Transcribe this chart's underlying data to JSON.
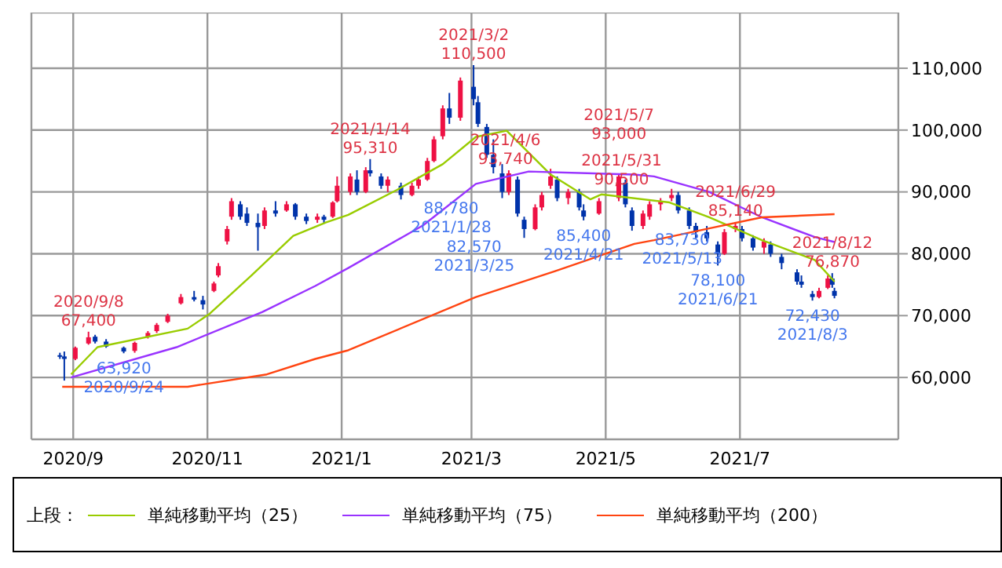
{
  "chart_data": {
    "type": "candlestick",
    "x": [
      "2020-08-26",
      "2020-08-28",
      "2020-09-02",
      "2020-09-08",
      "2020-09-11",
      "2020-09-16",
      "2020-09-24",
      "2020-09-29",
      "2020-10-05",
      "2020-10-09",
      "2020-10-14",
      "2020-10-20",
      "2020-10-26",
      "2020-10-30",
      "2020-11-04",
      "2020-11-06",
      "2020-11-10",
      "2020-11-12",
      "2020-11-16",
      "2020-11-19",
      "2020-11-24",
      "2020-11-27",
      "2020-12-02",
      "2020-12-07",
      "2020-12-11",
      "2020-12-16",
      "2020-12-21",
      "2020-12-24",
      "2020-12-28",
      "2020-12-30",
      "2021-01-05",
      "2021-01-08",
      "2021-01-12",
      "2021-01-14",
      "2021-01-19",
      "2021-01-22",
      "2021-01-28",
      "2021-02-02",
      "2021-02-05",
      "2021-02-09",
      "2021-02-12",
      "2021-02-16",
      "2021-02-19",
      "2021-02-24",
      "2021-03-02",
      "2021-03-04",
      "2021-03-08",
      "2021-03-11",
      "2021-03-15",
      "2021-03-18",
      "2021-03-22",
      "2021-03-25",
      "2021-03-30",
      "2021-04-02",
      "2021-04-06",
      "2021-04-09",
      "2021-04-14",
      "2021-04-19",
      "2021-04-21",
      "2021-04-28",
      "2021-05-07",
      "2021-05-10",
      "2021-05-13",
      "2021-05-18",
      "2021-05-21",
      "2021-05-26",
      "2021-05-31",
      "2021-06-03",
      "2021-06-08",
      "2021-06-11",
      "2021-06-16",
      "2021-06-21",
      "2021-06-24",
      "2021-06-29",
      "2021-07-02",
      "2021-07-07",
      "2021-07-12",
      "2021-07-15",
      "2021-07-20",
      "2021-07-27",
      "2021-07-29",
      "2021-08-03",
      "2021-08-06",
      "2021-08-10",
      "2021-08-12",
      "2021-08-13"
    ],
    "ohlc": [
      [
        63600,
        64000,
        63000,
        63400
      ],
      [
        63400,
        64200,
        59500,
        63000
      ],
      [
        63000,
        65000,
        62800,
        64800
      ],
      [
        65500,
        67400,
        65300,
        66500
      ],
      [
        66600,
        66900,
        65500,
        65800
      ],
      [
        65800,
        66200,
        64800,
        65000
      ],
      [
        64800,
        65000,
        63920,
        64200
      ],
      [
        64300,
        65800,
        64000,
        65600
      ],
      [
        66500,
        67500,
        66300,
        67200
      ],
      [
        67500,
        68800,
        67200,
        68500
      ],
      [
        69000,
        70300,
        68800,
        70000
      ],
      [
        72000,
        73500,
        71800,
        73000
      ],
      [
        73000,
        74000,
        72300,
        72600
      ],
      [
        72500,
        73200,
        71000,
        71800
      ],
      [
        74000,
        75500,
        73800,
        75200
      ],
      [
        76500,
        78500,
        76200,
        78000
      ],
      [
        82000,
        84500,
        81500,
        84000
      ],
      [
        86000,
        89000,
        85500,
        88500
      ],
      [
        88000,
        88500,
        85500,
        86000
      ],
      [
        86500,
        87500,
        84500,
        85000
      ],
      [
        85000,
        86500,
        80500,
        84300
      ],
      [
        84500,
        87500,
        84000,
        87000
      ],
      [
        87000,
        88500,
        86000,
        86500
      ],
      [
        87000,
        88500,
        86800,
        88000
      ],
      [
        88000,
        88200,
        85500,
        86000
      ],
      [
        86000,
        86500,
        84800,
        85300
      ],
      [
        85500,
        86500,
        85000,
        86000
      ],
      [
        86000,
        86300,
        85000,
        85500
      ],
      [
        86000,
        88500,
        85800,
        88300
      ],
      [
        88500,
        92500,
        88300,
        91000
      ],
      [
        90000,
        93000,
        89500,
        92500
      ],
      [
        92000,
        93500,
        89500,
        90000
      ],
      [
        90000,
        94000,
        89800,
        93500
      ],
      [
        93500,
        95310,
        92500,
        93000
      ],
      [
        92500,
        93000,
        90500,
        91000
      ],
      [
        91000,
        92500,
        90000,
        92000
      ],
      [
        91000,
        91500,
        88780,
        89500
      ],
      [
        89500,
        91500,
        89300,
        91000
      ],
      [
        91000,
        92500,
        90500,
        92000
      ],
      [
        92000,
        95500,
        91800,
        95000
      ],
      [
        95000,
        99000,
        94800,
        98500
      ],
      [
        99000,
        104000,
        98500,
        103500
      ],
      [
        103500,
        106000,
        101000,
        102000
      ],
      [
        102000,
        108500,
        101500,
        108000
      ],
      [
        107000,
        110500,
        104000,
        105000
      ],
      [
        104500,
        105500,
        100500,
        101000
      ],
      [
        100500,
        101000,
        95500,
        96000
      ],
      [
        96000,
        98500,
        93000,
        94000
      ],
      [
        93000,
        94500,
        89000,
        90000
      ],
      [
        90000,
        93500,
        89500,
        93000
      ],
      [
        92000,
        92500,
        86000,
        86500
      ],
      [
        85500,
        86000,
        82570,
        84000
      ],
      [
        84000,
        88000,
        83800,
        87500
      ],
      [
        87500,
        90000,
        87000,
        89500
      ],
      [
        91000,
        93740,
        90500,
        92500
      ],
      [
        92000,
        92500,
        88500,
        89000
      ],
      [
        89000,
        90500,
        88000,
        90000
      ],
      [
        90000,
        90500,
        87000,
        87500
      ],
      [
        87000,
        88000,
        85400,
        86000
      ],
      [
        86500,
        89000,
        86300,
        88500
      ],
      [
        89000,
        93000,
        88500,
        92500
      ],
      [
        91500,
        92000,
        87500,
        88000
      ],
      [
        87000,
        87500,
        83730,
        84500
      ],
      [
        84500,
        87000,
        84000,
        86500
      ],
      [
        86000,
        88500,
        85500,
        88000
      ],
      [
        88000,
        89000,
        87000,
        88500
      ],
      [
        89000,
        90500,
        88500,
        89500
      ],
      [
        89500,
        90000,
        86500,
        87000
      ],
      [
        87000,
        87500,
        84000,
        84500
      ],
      [
        84500,
        85000,
        82500,
        83500
      ],
      [
        83500,
        84500,
        82000,
        82500
      ],
      [
        81500,
        82000,
        78100,
        80000
      ],
      [
        80000,
        84000,
        79800,
        83500
      ],
      [
        84000,
        85140,
        83500,
        84500
      ],
      [
        84000,
        84500,
        82000,
        82500
      ],
      [
        82500,
        83000,
        80500,
        81000
      ],
      [
        81000,
        82500,
        80000,
        82000
      ],
      [
        81500,
        82000,
        79500,
        80000
      ],
      [
        79500,
        80000,
        77500,
        78500
      ],
      [
        77000,
        77500,
        75000,
        75500
      ],
      [
        75500,
        76500,
        74500,
        75000
      ],
      [
        73500,
        74000,
        72430,
        73000
      ],
      [
        73000,
        74500,
        72800,
        74000
      ],
      [
        74500,
        76500,
        74300,
        76000
      ],
      [
        76000,
        76870,
        74500,
        75000
      ],
      [
        74000,
        74500,
        72800,
        73200
      ]
    ],
    "colors": [
      "#0033aa",
      "#0033aa",
      "#ee1144",
      "#ee1144",
      "#0033aa",
      "#0033aa",
      "#0033aa",
      "#ee1144",
      "#ee1144",
      "#ee1144",
      "#ee1144",
      "#ee1144",
      "#0033aa",
      "#0033aa",
      "#ee1144",
      "#ee1144",
      "#ee1144",
      "#ee1144",
      "#0033aa",
      "#0033aa",
      "#0033aa",
      "#ee1144",
      "#0033aa",
      "#ee1144",
      "#0033aa",
      "#0033aa",
      "#ee1144",
      "#0033aa",
      "#ee1144",
      "#ee1144",
      "#ee1144",
      "#0033aa",
      "#ee1144",
      "#0033aa",
      "#0033aa",
      "#ee1144",
      "#0033aa",
      "#ee1144",
      "#ee1144",
      "#ee1144",
      "#ee1144",
      "#ee1144",
      "#0033aa",
      "#ee1144",
      "#0033aa",
      "#0033aa",
      "#0033aa",
      "#0033aa",
      "#0033aa",
      "#ee1144",
      "#0033aa",
      "#0033aa",
      "#ee1144",
      "#ee1144",
      "#ee1144",
      "#0033aa",
      "#ee1144",
      "#0033aa",
      "#0033aa",
      "#ee1144",
      "#ee1144",
      "#0033aa",
      "#0033aa",
      "#ee1144",
      "#ee1144",
      "#ee1144",
      "#ee1144",
      "#0033aa",
      "#0033aa",
      "#0033aa",
      "#0033aa",
      "#0033aa",
      "#ee1144",
      "#ee1144",
      "#0033aa",
      "#0033aa",
      "#ee1144",
      "#0033aa",
      "#0033aa",
      "#0033aa",
      "#0033aa",
      "#0033aa",
      "#ee1144",
      "#ee1144",
      "#0033aa",
      "#0033aa"
    ],
    "series": [
      {
        "type": "line",
        "name": "単純移動平均（25）",
        "color": "#99cc00",
        "x": [
          "2020-08-31",
          "2020-09-12",
          "2020-10-23",
          "2020-11-02",
          "2020-11-21",
          "2020-12-10",
          "2020-12-25",
          "2021-01-04",
          "2021-01-26",
          "2021-02-16",
          "2021-03-03",
          "2021-03-17",
          "2021-04-06",
          "2021-04-24",
          "2021-04-29",
          "2021-05-30",
          "2021-06-17",
          "2021-07-11",
          "2021-08-04",
          "2021-08-13"
        ],
        "values": [
          60500,
          64900,
          67900,
          70300,
          76500,
          82900,
          85100,
          86300,
          90300,
          94500,
          98900,
          99900,
          92800,
          88800,
          89600,
          88300,
          85900,
          82200,
          79000,
          75500
        ]
      },
      {
        "type": "line",
        "name": "単純移動平均（75）",
        "color": "#9933ff",
        "x": [
          "2020-08-31",
          "2020-10-18",
          "2020-11-26",
          "2020-12-20",
          "2021-01-04",
          "2021-02-07",
          "2021-03-03",
          "2021-03-27",
          "2021-05-14",
          "2021-05-23",
          "2021-06-17",
          "2021-07-11",
          "2021-08-04",
          "2021-08-13"
        ],
        "values": [
          60000,
          64900,
          70600,
          74800,
          77700,
          84600,
          91300,
          93300,
          92800,
          92500,
          90000,
          85900,
          82700,
          81900
        ]
      },
      {
        "type": "line",
        "name": "単純移動平均（200）",
        "color": "#ff4411",
        "x": [
          "2020-08-27",
          "2020-10-23",
          "2020-11-28",
          "2020-12-20",
          "2021-01-04",
          "2021-03-03",
          "2021-04-08",
          "2021-05-14",
          "2021-05-23",
          "2021-06-17",
          "2021-07-11",
          "2021-08-13"
        ],
        "values": [
          58500,
          58500,
          60500,
          63000,
          64400,
          73000,
          77200,
          81600,
          82200,
          84100,
          85900,
          86400
        ]
      }
    ],
    "xlim": [
      "2020-08-13",
      "2021-09-11"
    ],
    "xticks": [
      {
        "value": "2020-09-01",
        "label": "2020/9"
      },
      {
        "value": "2020-11-01",
        "label": "2020/11"
      },
      {
        "value": "2021-01-01",
        "label": "2021/1"
      },
      {
        "value": "2021-03-01",
        "label": "2021/3"
      },
      {
        "value": "2021-05-01",
        "label": "2021/5"
      },
      {
        "value": "2021-07-01",
        "label": "2021/7"
      }
    ],
    "ylim": [
      50000,
      119000
    ],
    "yticks": [
      {
        "value": 60000,
        "label": "60,000"
      },
      {
        "value": 70000,
        "label": "70,000"
      },
      {
        "value": 80000,
        "label": "80,000"
      },
      {
        "value": 90000,
        "label": "90,000"
      },
      {
        "value": 100000,
        "label": "100,000"
      },
      {
        "value": 110000,
        "label": "110,000"
      }
    ],
    "grid": true,
    "legend": "bottom",
    "legend_title": "上段：",
    "annotations": [
      {
        "text": "2020/9/8\n67,400",
        "x": "2020-09-08",
        "y": 67400
      },
      {
        "text": "63,920\n2020/9/24",
        "x": "2020-09-24",
        "y": 63920
      },
      {
        "text": "2021/1/14\n95,310",
        "x": "2021-01-14",
        "y": 95310
      },
      {
        "text": "88,780\n2021/1/28",
        "x": "2021-01-28",
        "y": 88780
      },
      {
        "text": "2021/3/2\n110,500",
        "x": "2021-03-02",
        "y": 110500
      },
      {
        "text": "82,570\n2021/3/25",
        "x": "2021-03-25",
        "y": 82570
      },
      {
        "text": "2021/4/6\n93,740",
        "x": "2021-04-06",
        "y": 93740
      },
      {
        "text": "85,400\n2021/4/21",
        "x": "2021-04-21",
        "y": 85400
      },
      {
        "text": "2021/5/7\n93,000",
        "x": "2021-05-07",
        "y": 93000
      },
      {
        "text": "83,730\n2021/5/13",
        "x": "2021-05-13",
        "y": 83730
      },
      {
        "text": "2021/5/31\n90,500",
        "x": "2021-05-31",
        "y": 90500
      },
      {
        "text": "78,100\n2021/6/21",
        "x": "2021-06-21",
        "y": 78100
      },
      {
        "text": "2021/6/29\n85,140",
        "x": "2021-06-29",
        "y": 85140
      },
      {
        "text": "72,430\n2021/8/3",
        "x": "2021-08-03",
        "y": 72430
      },
      {
        "text": "2021/8/12\n76,870",
        "x": "2021-08-12",
        "y": 76870
      }
    ]
  }
}
